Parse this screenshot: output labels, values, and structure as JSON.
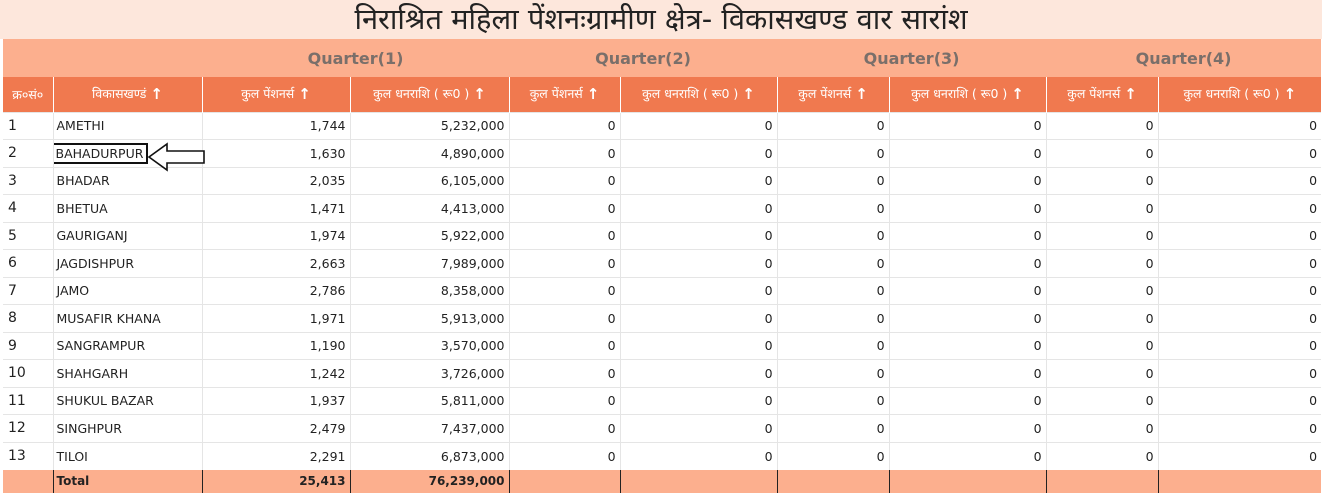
{
  "title": "निराश्रित महिला पेंशनःग्रामीण क्षेत्र- विकासखण्ड वार सारांश",
  "quarters": [
    "Quarter(1)",
    "Quarter(2)",
    "Quarter(3)",
    "Quarter(4)"
  ],
  "headers": {
    "serial": "क्र०सं०",
    "block": "विकासखण्डं",
    "pensioners": "कुल पेंशनर्स",
    "amount": "कुल धनराशि ( रू0 )"
  },
  "sort_icon": "↑",
  "rows": [
    {
      "sn": "1",
      "name": "AMETHI",
      "q1p": "1,744",
      "q1a": "5,232,000",
      "q2p": "0",
      "q2a": "0",
      "q3p": "0",
      "q3a": "0",
      "q4p": "0",
      "q4a": "0"
    },
    {
      "sn": "2",
      "name": "BAHADURPUR",
      "q1p": "1,630",
      "q1a": "4,890,000",
      "q2p": "0",
      "q2a": "0",
      "q3p": "0",
      "q3a": "0",
      "q4p": "0",
      "q4a": "0"
    },
    {
      "sn": "3",
      "name": "BHADAR",
      "q1p": "2,035",
      "q1a": "6,105,000",
      "q2p": "0",
      "q2a": "0",
      "q3p": "0",
      "q3a": "0",
      "q4p": "0",
      "q4a": "0"
    },
    {
      "sn": "4",
      "name": "BHETUA",
      "q1p": "1,471",
      "q1a": "4,413,000",
      "q2p": "0",
      "q2a": "0",
      "q3p": "0",
      "q3a": "0",
      "q4p": "0",
      "q4a": "0"
    },
    {
      "sn": "5",
      "name": "GAURIGANJ",
      "q1p": "1,974",
      "q1a": "5,922,000",
      "q2p": "0",
      "q2a": "0",
      "q3p": "0",
      "q3a": "0",
      "q4p": "0",
      "q4a": "0"
    },
    {
      "sn": "6",
      "name": "JAGDISHPUR",
      "q1p": "2,663",
      "q1a": "7,989,000",
      "q2p": "0",
      "q2a": "0",
      "q3p": "0",
      "q3a": "0",
      "q4p": "0",
      "q4a": "0"
    },
    {
      "sn": "7",
      "name": "JAMO",
      "q1p": "2,786",
      "q1a": "8,358,000",
      "q2p": "0",
      "q2a": "0",
      "q3p": "0",
      "q3a": "0",
      "q4p": "0",
      "q4a": "0"
    },
    {
      "sn": "8",
      "name": "MUSAFIR KHANA",
      "q1p": "1,971",
      "q1a": "5,913,000",
      "q2p": "0",
      "q2a": "0",
      "q3p": "0",
      "q3a": "0",
      "q4p": "0",
      "q4a": "0"
    },
    {
      "sn": "9",
      "name": "SANGRAMPUR",
      "q1p": "1,190",
      "q1a": "3,570,000",
      "q2p": "0",
      "q2a": "0",
      "q3p": "0",
      "q3a": "0",
      "q4p": "0",
      "q4a": "0"
    },
    {
      "sn": "10",
      "name": "SHAHGARH",
      "q1p": "1,242",
      "q1a": "3,726,000",
      "q2p": "0",
      "q2a": "0",
      "q3p": "0",
      "q3a": "0",
      "q4p": "0",
      "q4a": "0"
    },
    {
      "sn": "11",
      "name": "SHUKUL BAZAR",
      "q1p": "1,937",
      "q1a": "5,811,000",
      "q2p": "0",
      "q2a": "0",
      "q3p": "0",
      "q3a": "0",
      "q4p": "0",
      "q4a": "0"
    },
    {
      "sn": "12",
      "name": "SINGHPUR",
      "q1p": "2,479",
      "q1a": "7,437,000",
      "q2p": "0",
      "q2a": "0",
      "q3p": "0",
      "q3a": "0",
      "q4p": "0",
      "q4a": "0"
    },
    {
      "sn": "13",
      "name": "TILOI",
      "q1p": "2,291",
      "q1a": "6,873,000",
      "q2p": "0",
      "q2a": "0",
      "q3p": "0",
      "q3a": "0",
      "q4p": "0",
      "q4a": "0"
    }
  ],
  "total": {
    "label": "Total",
    "q1p": "25,413",
    "q1a": "76,239,000"
  },
  "highlighted_row": "BAHADURPUR",
  "colors": {
    "title_bg": "#fde7dc",
    "quarter_bg": "#fcaf8e",
    "header_bg": "#f0794f",
    "link": "#2a79c9",
    "total_bg": "#fcaf8e"
  }
}
